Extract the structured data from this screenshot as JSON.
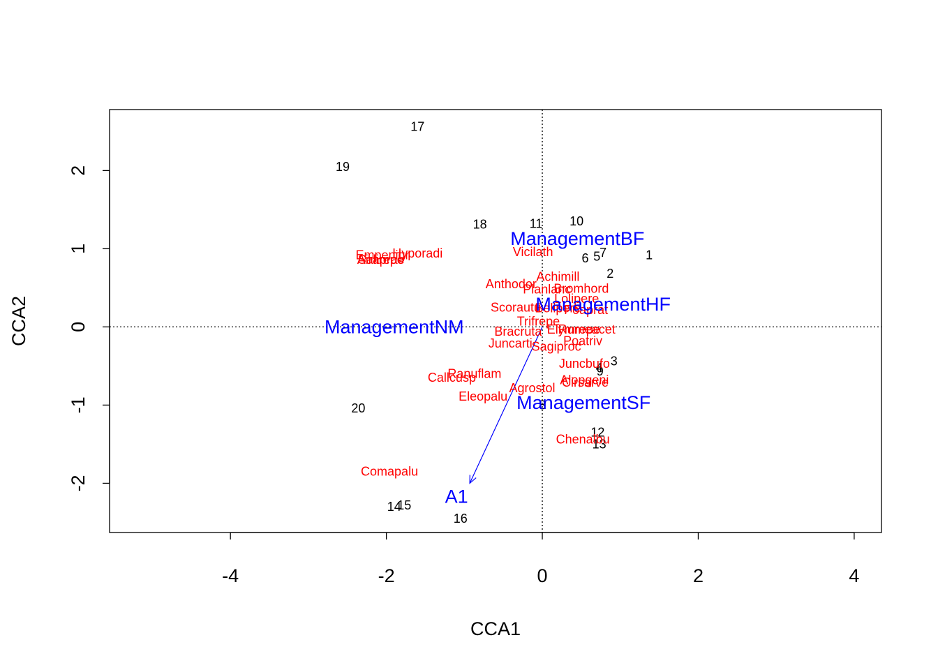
{
  "chart_data": {
    "type": "scatter",
    "title": "",
    "xlabel": "CCA1",
    "ylabel": "CCA2",
    "xlim": [
      -5.55,
      4.35
    ],
    "ylim": [
      -2.63,
      2.78
    ],
    "x_ticks": [
      {
        "value": -4,
        "label": "-4"
      },
      {
        "value": -2,
        "label": "-2"
      },
      {
        "value": 0,
        "label": "0"
      },
      {
        "value": 2,
        "label": "2"
      },
      {
        "value": 4,
        "label": "4"
      }
    ],
    "y_ticks": [
      {
        "value": -2,
        "label": "-2"
      },
      {
        "value": -1,
        "label": "-1"
      },
      {
        "value": 0,
        "label": "0"
      },
      {
        "value": 1,
        "label": "1"
      },
      {
        "value": 2,
        "label": "2"
      }
    ],
    "colors": {
      "sites": "#000000",
      "species": "#ff0000",
      "biplot": "#0000ff",
      "frame": "#000000"
    },
    "reference_lines": {
      "x": 0,
      "y": 0,
      "style": "dotted"
    },
    "sites": [
      {
        "label": "1",
        "x": 1.37,
        "y": 0.92
      },
      {
        "label": "2",
        "x": 0.87,
        "y": 0.68
      },
      {
        "label": "3",
        "x": 0.92,
        "y": -0.44
      },
      {
        "label": "4",
        "x": 0.73,
        "y": -0.52
      },
      {
        "label": "5",
        "x": 0.7,
        "y": 0.9
      },
      {
        "label": "6",
        "x": 0.55,
        "y": 0.88
      },
      {
        "label": "7",
        "x": 0.78,
        "y": 0.95
      },
      {
        "label": "8",
        "x": 0.0,
        "y": -1.0
      },
      {
        "label": "9",
        "x": 0.74,
        "y": -0.57
      },
      {
        "label": "10",
        "x": 0.44,
        "y": 1.35
      },
      {
        "label": "11",
        "x": -0.08,
        "y": 1.32
      },
      {
        "label": "12",
        "x": 0.71,
        "y": -1.35
      },
      {
        "label": "13",
        "x": 0.73,
        "y": -1.5
      },
      {
        "label": "14",
        "x": -1.9,
        "y": -2.3
      },
      {
        "label": "15",
        "x": -1.77,
        "y": -2.28
      },
      {
        "label": "16",
        "x": -1.05,
        "y": -2.45
      },
      {
        "label": "17",
        "x": -1.6,
        "y": 2.56
      },
      {
        "label": "18",
        "x": -0.8,
        "y": 1.31
      },
      {
        "label": "19",
        "x": -2.56,
        "y": 2.05
      },
      {
        "label": "20",
        "x": -2.36,
        "y": -1.04
      }
    ],
    "species": [
      {
        "label": "Empenigr",
        "x": -2.05,
        "y": 0.92
      },
      {
        "label": "Hyporadi",
        "x": -1.6,
        "y": 0.94
      },
      {
        "label": "Airaprae",
        "x": -2.07,
        "y": 0.86
      },
      {
        "label": "Salirepe",
        "x": -2.07,
        "y": 0.86
      },
      {
        "label": "Vicilath",
        "x": -0.12,
        "y": 0.96
      },
      {
        "label": "Achimill",
        "x": 0.2,
        "y": 0.64
      },
      {
        "label": "Anthodor",
        "x": -0.4,
        "y": 0.55
      },
      {
        "label": "Bromhord",
        "x": 0.5,
        "y": 0.49
      },
      {
        "label": "Planlanc",
        "x": 0.06,
        "y": 0.48
      },
      {
        "label": "Lolipere",
        "x": 0.44,
        "y": 0.36
      },
      {
        "label": "Scorautu",
        "x": -0.34,
        "y": 0.25
      },
      {
        "label": "Bellpere",
        "x": 0.2,
        "y": 0.24
      },
      {
        "label": "Poaprat",
        "x": 0.56,
        "y": 0.22
      },
      {
        "label": "Trifrepe",
        "x": -0.05,
        "y": 0.07
      },
      {
        "label": "Elymrepe",
        "x": 0.4,
        "y": -0.03
      },
      {
        "label": "Rumeacet",
        "x": 0.57,
        "y": -0.03
      },
      {
        "label": "Bracruta",
        "x": -0.31,
        "y": -0.06
      },
      {
        "label": "Juncarti",
        "x": -0.41,
        "y": -0.21
      },
      {
        "label": "Poatriv",
        "x": 0.52,
        "y": -0.18
      },
      {
        "label": "Sagiproc",
        "x": 0.18,
        "y": -0.25
      },
      {
        "label": "Juncbufo",
        "x": 0.54,
        "y": -0.47
      },
      {
        "label": "Ranuflam",
        "x": -0.87,
        "y": -0.6
      },
      {
        "label": "Callcusp",
        "x": -1.16,
        "y": -0.65
      },
      {
        "label": "Alopgeni",
        "x": 0.54,
        "y": -0.68
      },
      {
        "label": "Cirsarve",
        "x": 0.55,
        "y": -0.71
      },
      {
        "label": "Agrostol",
        "x": -0.13,
        "y": -0.78
      },
      {
        "label": "Eleopalu",
        "x": -0.76,
        "y": -0.89
      },
      {
        "label": "Chenalbu",
        "x": 0.52,
        "y": -1.44
      },
      {
        "label": "Comapalu",
        "x": -1.96,
        "y": -1.85
      }
    ],
    "factor_centroids": [
      {
        "label": "ManagementBF",
        "x": 0.45,
        "y": 1.13
      },
      {
        "label": "ManagementHF",
        "x": 0.78,
        "y": 0.29
      },
      {
        "label": "ManagementNM",
        "x": -1.9,
        "y": 0.0
      },
      {
        "label": "ManagementSF",
        "x": 0.53,
        "y": -0.97
      }
    ],
    "biplot_arrows": [
      {
        "label": "A1",
        "from": [
          0.0,
          0.0
        ],
        "to": [
          -0.93,
          -2.0
        ],
        "label_at": [
          -1.1,
          -2.17
        ]
      }
    ]
  }
}
